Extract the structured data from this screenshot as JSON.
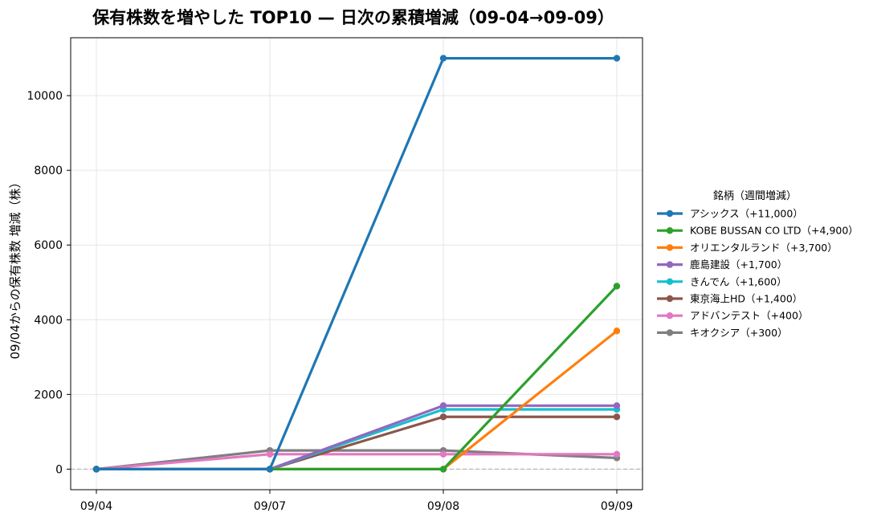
{
  "chart_data": {
    "type": "line",
    "title": "保有株数を増やした TOP10 — 日次の累積増減（09-04→09-09）",
    "xlabel": "",
    "ylabel": "09/04からの保有株数 増減（株）",
    "x": [
      "09/04",
      "09/07",
      "09/08",
      "09/09"
    ],
    "yticks": [
      0,
      2000,
      4000,
      6000,
      8000,
      10000
    ],
    "ylim": [
      -550,
      11550
    ],
    "grid": true,
    "zero_line": true,
    "legend": {
      "title": "銘柄（週間増減）",
      "placement": "right"
    },
    "series": [
      {
        "name": "アシックス（+11,000）",
        "color": "#1f77b4",
        "values": [
          0,
          0,
          11000,
          11000
        ]
      },
      {
        "name": "KOBE BUSSAN CO LTD（+4,900）",
        "color": "#2ca02c",
        "values": [
          0,
          0,
          0,
          4900
        ]
      },
      {
        "name": "オリエンタルランド（+3,700）",
        "color": "#ff7f0e",
        "values": [
          0,
          0,
          0,
          3700
        ]
      },
      {
        "name": "鹿島建設（+1,700）",
        "color": "#9467bd",
        "values": [
          0,
          0,
          1700,
          1700
        ]
      },
      {
        "name": "きんでん（+1,600）",
        "color": "#17becf",
        "values": [
          0,
          0,
          1600,
          1600
        ]
      },
      {
        "name": "東京海上HD（+1,400）",
        "color": "#8c564b",
        "values": [
          0,
          0,
          1400,
          1400
        ]
      },
      {
        "name": "アドバンテスト（+400）",
        "color": "#e377c2",
        "values": [
          0,
          400,
          400,
          400
        ]
      },
      {
        "name": "キオクシア（+300）",
        "color": "#7f7f7f",
        "values": [
          0,
          500,
          500,
          300
        ]
      }
    ]
  }
}
